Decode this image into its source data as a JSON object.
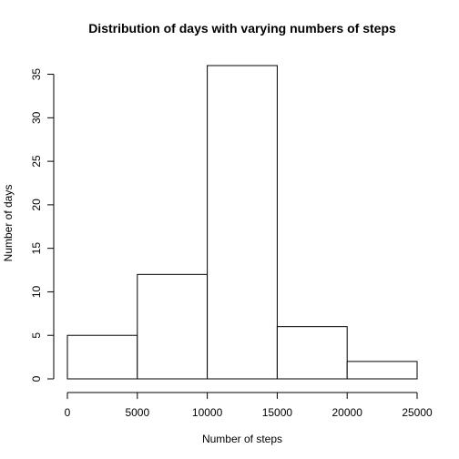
{
  "chart_data": {
    "type": "bar",
    "title": "Distribution of days with varying numbers of steps",
    "xlabel": "Number of steps",
    "ylabel": "Number of days",
    "bins": [
      {
        "from": 0,
        "to": 5000,
        "count": 5
      },
      {
        "from": 5000,
        "to": 10000,
        "count": 12
      },
      {
        "from": 10000,
        "to": 15000,
        "count": 36
      },
      {
        "from": 15000,
        "to": 20000,
        "count": 6
      },
      {
        "from": 20000,
        "to": 25000,
        "count": 2
      }
    ],
    "xlim": [
      0,
      25000
    ],
    "ylim": [
      0,
      36
    ],
    "x_ticks": [
      0,
      5000,
      10000,
      15000,
      20000,
      25000
    ],
    "y_ticks": [
      0,
      5,
      10,
      15,
      20,
      25,
      30,
      35
    ],
    "bar_fill": "#ffffff",
    "bar_stroke": "#000000",
    "grid": false
  }
}
